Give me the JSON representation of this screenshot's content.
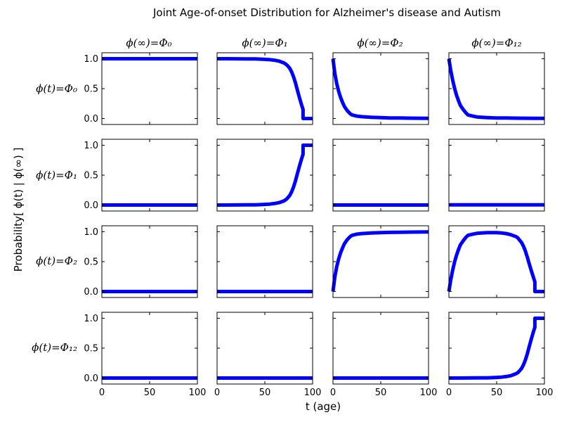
{
  "chart_data": {
    "type": "line",
    "title": "Joint Age-of-onset Distribution for Alzheimer's disease and Autism",
    "xlabel": "t (age)",
    "ylabel": "Probability[ ϕ(t) | ϕ(∞) ]",
    "xlim": [
      0,
      100
    ],
    "ylim": [
      -0.1,
      1.1
    ],
    "xticks": [
      "0",
      "50",
      "100"
    ],
    "yticks": [
      "0.0",
      "0.5",
      "1.0"
    ],
    "grid": false,
    "line_color": "#0000ff",
    "column_labels": [
      "ϕ(∞)=Φ₀",
      "ϕ(∞)=Φ₁",
      "ϕ(∞)=Φ₂",
      "ϕ(∞)=Φ₁₂"
    ],
    "row_labels": [
      "ϕ(t)=Φ₀",
      "ϕ(t)=Φ₁",
      "ϕ(t)=Φ₂",
      "ϕ(t)=Φ₁₂"
    ],
    "panels": [
      [
        {
          "x": [
            0,
            100
          ],
          "y": [
            1.0,
            1.0
          ]
        },
        {
          "x": [
            0,
            10,
            20,
            30,
            40,
            50,
            55,
            60,
            65,
            70,
            72,
            74,
            76,
            78,
            80,
            82,
            84,
            86,
            88,
            90,
            90,
            92,
            100
          ],
          "y": [
            1.0,
            1.0,
            0.999,
            0.998,
            0.996,
            0.99,
            0.985,
            0.975,
            0.96,
            0.93,
            0.91,
            0.88,
            0.84,
            0.78,
            0.7,
            0.6,
            0.48,
            0.36,
            0.25,
            0.15,
            0.0,
            0.0,
            0.0
          ]
        },
        {
          "x": [
            0,
            2,
            4,
            6,
            8,
            10,
            12,
            15,
            18,
            20,
            25,
            30,
            40,
            50,
            60,
            70,
            80,
            90,
            100
          ],
          "y": [
            1.0,
            0.75,
            0.58,
            0.45,
            0.35,
            0.27,
            0.2,
            0.13,
            0.08,
            0.06,
            0.04,
            0.03,
            0.02,
            0.015,
            0.01,
            0.008,
            0.006,
            0.005,
            0.004
          ]
        },
        {
          "x": [
            0,
            2,
            4,
            6,
            8,
            10,
            12,
            15,
            18,
            20,
            25,
            30,
            40,
            50,
            60,
            70,
            80,
            90,
            100
          ],
          "y": [
            1.0,
            0.8,
            0.64,
            0.5,
            0.39,
            0.3,
            0.22,
            0.15,
            0.09,
            0.06,
            0.04,
            0.025,
            0.015,
            0.01,
            0.008,
            0.006,
            0.005,
            0.004,
            0.003
          ]
        }
      ],
      [
        {
          "x": [
            0,
            100
          ],
          "y": [
            0.0,
            0.0
          ]
        },
        {
          "x": [
            0,
            10,
            20,
            30,
            40,
            50,
            55,
            60,
            65,
            70,
            72,
            74,
            76,
            78,
            80,
            82,
            84,
            86,
            88,
            90,
            90,
            92,
            100
          ],
          "y": [
            0.0,
            0.0,
            0.001,
            0.002,
            0.004,
            0.01,
            0.015,
            0.025,
            0.04,
            0.07,
            0.09,
            0.12,
            0.16,
            0.22,
            0.3,
            0.4,
            0.52,
            0.64,
            0.75,
            0.85,
            1.0,
            1.0,
            1.0
          ]
        },
        {
          "x": [
            0,
            100
          ],
          "y": [
            0.0,
            0.0
          ]
        },
        {
          "x": [
            0,
            100
          ],
          "y": [
            0.002,
            0.002
          ]
        }
      ],
      [
        {
          "x": [
            0,
            100
          ],
          "y": [
            0.0,
            0.0
          ]
        },
        {
          "x": [
            0,
            100
          ],
          "y": [
            0.0,
            0.0
          ]
        },
        {
          "x": [
            0,
            2,
            4,
            6,
            8,
            10,
            12,
            15,
            18,
            20,
            25,
            30,
            40,
            50,
            60,
            70,
            80,
            90,
            100
          ],
          "y": [
            0.0,
            0.25,
            0.42,
            0.55,
            0.65,
            0.73,
            0.8,
            0.87,
            0.92,
            0.94,
            0.96,
            0.97,
            0.98,
            0.985,
            0.99,
            0.992,
            0.994,
            0.995,
            0.996
          ]
        },
        {
          "x": [
            0,
            2,
            4,
            6,
            8,
            10,
            12,
            15,
            18,
            20,
            25,
            30,
            40,
            50,
            55,
            60,
            65,
            70,
            72,
            74,
            76,
            78,
            80,
            82,
            84,
            86,
            88,
            90,
            90,
            92,
            100
          ],
          "y": [
            0.0,
            0.2,
            0.36,
            0.5,
            0.61,
            0.7,
            0.78,
            0.85,
            0.91,
            0.94,
            0.96,
            0.975,
            0.985,
            0.985,
            0.98,
            0.97,
            0.95,
            0.92,
            0.9,
            0.86,
            0.82,
            0.76,
            0.68,
            0.58,
            0.47,
            0.36,
            0.26,
            0.16,
            0.0,
            0.0,
            0.0
          ]
        }
      ],
      [
        {
          "x": [
            0,
            100
          ],
          "y": [
            0.0,
            0.0
          ]
        },
        {
          "x": [
            0,
            100
          ],
          "y": [
            0.0,
            0.0
          ]
        },
        {
          "x": [
            0,
            100
          ],
          "y": [
            0.0,
            0.0
          ]
        },
        {
          "x": [
            0,
            10,
            20,
            30,
            40,
            50,
            55,
            60,
            65,
            70,
            72,
            74,
            76,
            78,
            80,
            82,
            84,
            86,
            88,
            90,
            90,
            92,
            100
          ],
          "y": [
            0.0,
            0.0,
            0.001,
            0.002,
            0.004,
            0.01,
            0.015,
            0.025,
            0.04,
            0.07,
            0.09,
            0.12,
            0.16,
            0.22,
            0.3,
            0.4,
            0.52,
            0.64,
            0.75,
            0.85,
            1.0,
            1.0,
            1.0
          ]
        }
      ]
    ]
  }
}
